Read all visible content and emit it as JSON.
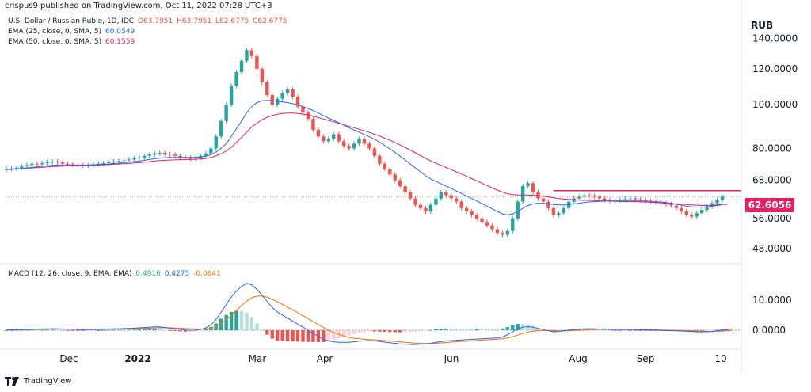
{
  "header": {
    "published": "crispus9 published on TradingView.com, Oct 11, 2022 07:28 UTC+3"
  },
  "legend": {
    "title": "U.S. Dollar / Russian Ruble, 1D, IDC",
    "ohlc": {
      "o": "O63.7951",
      "h": "H63.7951",
      "l": "L62.6775",
      "c": "C62.6775"
    },
    "ema25_label": "EMA (25, close, 0, SMA, 5)",
    "ema25_value": "60.0549",
    "ema50_label": "EMA (50, close, 0, SMA, 5)",
    "ema50_value": "60.1559",
    "macd_label": "MACD (12, 26, close, 9, EMA, EMA)",
    "macd_hist": "0.4916",
    "macd_line": "0.4275",
    "macd_signal": "-0.0641"
  },
  "currency": "RUB",
  "price_badge": "62.6056",
  "footer": {
    "brand": "TradingView"
  },
  "colors": {
    "up": "#26a69a",
    "down": "#ef5350",
    "ema25": "#2962ff",
    "ema50": "#e91e63",
    "signal": "#ff6d00",
    "resistance": "#e91e63"
  },
  "chart_data": {
    "type": "candlestick",
    "price_axis": {
      "ticks": [
        "140.0000",
        "120.0000",
        "100.0000",
        "80.0000",
        "68.0000",
        "56.0000",
        "48.0000"
      ],
      "ylim": [
        45,
        145
      ],
      "scale": "log"
    },
    "macd_axis": {
      "ticks": [
        "10.0000",
        "0.0000"
      ],
      "ylim": [
        -6,
        17
      ]
    },
    "x_ticks": [
      "Dec",
      "2022",
      "Mar",
      "Apr",
      "Jun",
      "Aug",
      "Sep",
      "10"
    ],
    "resistance_level": 64.5,
    "current_price": 62.6056,
    "close": [
      72,
      72.2,
      72.5,
      73,
      73.5,
      74,
      73.8,
      74.2,
      74.6,
      74.8,
      74.5,
      74,
      73.8,
      73.6,
      73.5,
      73.3,
      73.4,
      73.8,
      74,
      74.2,
      74.5,
      74.8,
      75,
      75.3,
      75.6,
      76,
      76.4,
      77,
      77.5,
      78,
      78.2,
      77.8,
      77.5,
      77,
      76.5,
      76.2,
      76,
      76.3,
      77,
      78,
      80,
      85,
      92,
      100,
      110,
      118,
      125,
      132,
      128,
      120,
      112,
      105,
      100,
      103,
      106,
      108,
      104,
      99,
      96,
      93,
      88,
      85,
      83,
      84,
      86,
      83,
      81,
      80,
      82,
      84,
      82,
      80,
      77,
      74,
      72,
      70,
      68,
      66,
      64,
      62,
      60,
      59,
      58,
      60,
      62,
      64,
      63,
      62,
      61,
      59,
      58,
      57,
      56,
      55,
      54,
      53,
      52,
      51.5,
      52.5,
      56,
      61,
      66,
      67,
      64,
      62,
      61,
      59,
      57,
      57.5,
      59,
      61,
      62,
      62.5,
      63,
      62.8,
      62.5,
      62,
      61.5,
      61.2,
      61.4,
      61.6,
      61.8,
      62,
      61.7,
      61.5,
      61.2,
      61,
      60.8,
      60.5,
      60.2,
      59.8,
      59,
      58,
      57,
      56.5,
      57.5,
      58.5,
      59.5,
      60.5,
      61.5,
      62.6
    ],
    "ema25": [
      71.8,
      71.9,
      72,
      72.2,
      72.4,
      72.6,
      72.8,
      73,
      73.2,
      73.4,
      73.5,
      73.5,
      73.5,
      73.5,
      73.5,
      73.5,
      73.5,
      73.6,
      73.7,
      73.8,
      73.9,
      74.1,
      74.2,
      74.4,
      74.6,
      74.8,
      75,
      75.3,
      75.6,
      75.9,
      76.1,
      76.3,
      76.4,
      76.4,
      76.4,
      76.4,
      76.4,
      76.4,
      76.6,
      76.9,
      77.5,
      78.5,
      80,
      82,
      85,
      88.5,
      92,
      96,
      99,
      101,
      102,
      102.2,
      102,
      101.7,
      101.4,
      101,
      100.5,
      99.8,
      99,
      98,
      97,
      95.8,
      94.6,
      93.4,
      92.3,
      91.2,
      90,
      88.9,
      87.9,
      86.9,
      85.9,
      84.9,
      83.8,
      82.6,
      81.2,
      79.8,
      78.4,
      76.9,
      75.4,
      73.9,
      72.4,
      71,
      69.6,
      68.5,
      67.6,
      66.8,
      66,
      65.2,
      64.4,
      63.6,
      62.8,
      62,
      61.2,
      60.4,
      59.6,
      58.8,
      58,
      57.3,
      57,
      57.3,
      58,
      59,
      59.8,
      60.3,
      60.5,
      60.5,
      60.3,
      60.1,
      60,
      60,
      60.1,
      60.3,
      60.5,
      60.7,
      60.9,
      61,
      61.1,
      61.2,
      61.2,
      61.2,
      61.2,
      61.2,
      61.2,
      61.2,
      61.2,
      61.2,
      61.1,
      61,
      60.9,
      60.7,
      60.5,
      60.2,
      59.9,
      59.6,
      59.4,
      59.3,
      59.3,
      59.4,
      59.6,
      59.8,
      60.05
    ],
    "ema50": [
      72,
      72,
      72.1,
      72.2,
      72.3,
      72.4,
      72.5,
      72.6,
      72.8,
      72.9,
      73,
      73.1,
      73.2,
      73.2,
      73.3,
      73.3,
      73.3,
      73.4,
      73.5,
      73.6,
      73.7,
      73.8,
      73.9,
      74,
      74.1,
      74.3,
      74.4,
      74.6,
      74.8,
      75,
      75.2,
      75.3,
      75.4,
      75.5,
      75.5,
      75.6,
      75.6,
      75.7,
      75.8,
      76,
      76.4,
      77,
      77.8,
      79,
      80.5,
      82.5,
      84.5,
      87,
      89.2,
      91,
      92.6,
      93.8,
      94.6,
      95.2,
      95.6,
      95.8,
      95.8,
      95.6,
      95.3,
      94.9,
      94.3,
      93.6,
      92.9,
      92.2,
      91.6,
      90.9,
      90.2,
      89.5,
      88.9,
      88.2,
      87.5,
      86.8,
      86,
      85.2,
      84.3,
      83.4,
      82.4,
      81.4,
      80.4,
      79.3,
      78.2,
      77.1,
      76,
      75.1,
      74.2,
      73.4,
      72.6,
      71.8,
      71,
      70.2,
      69.4,
      68.6,
      67.8,
      67,
      66.2,
      65.4,
      64.7,
      64,
      63.5,
      63.2,
      63.1,
      63.1,
      63.1,
      63,
      62.9,
      62.7,
      62.5,
      62.2,
      62,
      61.8,
      61.7,
      61.6,
      61.5,
      61.4,
      61.4,
      61.3,
      61.3,
      61.2,
      61.2,
      61.1,
      61.1,
      61,
      61,
      61,
      60.9,
      60.9,
      60.8,
      60.7,
      60.6,
      60.5,
      60.4,
      60.3,
      60.2,
      60.1,
      60,
      59.9,
      59.8,
      59.8,
      59.9,
      60,
      60.1,
      60.16
    ],
    "macd": [
      0.1,
      0.15,
      0.2,
      0.25,
      0.3,
      0.35,
      0.35,
      0.4,
      0.45,
      0.5,
      0.45,
      0.4,
      0.35,
      0.3,
      0.25,
      0.2,
      0.2,
      0.25,
      0.3,
      0.35,
      0.4,
      0.45,
      0.5,
      0.55,
      0.6,
      0.7,
      0.8,
      0.9,
      1,
      1.1,
      1.1,
      0.9,
      0.7,
      0.5,
      0.3,
      0.1,
      0,
      0,
      0.3,
      0.8,
      1.8,
      3.5,
      6,
      8.5,
      11,
      13,
      14.5,
      15.5,
      15,
      13.5,
      11.5,
      9.5,
      7.5,
      6,
      5,
      4,
      3,
      2,
      1,
      0,
      -1,
      -2,
      -3,
      -3.5,
      -3.8,
      -4,
      -4,
      -4,
      -3.8,
      -3.6,
      -3.5,
      -3.4,
      -3.5,
      -3.7,
      -3.9,
      -4.1,
      -4.3,
      -4.5,
      -4.6,
      -4.7,
      -4.7,
      -4.6,
      -4.5,
      -4.3,
      -4,
      -3.7,
      -3.5,
      -3.4,
      -3.3,
      -3.2,
      -3.1,
      -3,
      -2.9,
      -2.8,
      -2.7,
      -2.6,
      -2.5,
      -2.2,
      -1.5,
      -0.5,
      0.5,
      1,
      1.2,
      1,
      0.6,
      0.2,
      -0.2,
      -0.5,
      -0.4,
      -0.2,
      0,
      0.2,
      0.35,
      0.45,
      0.5,
      0.45,
      0.4,
      0.35,
      0.3,
      0.25,
      0.25,
      0.25,
      0.25,
      0.2,
      0.15,
      0.1,
      0.05,
      0,
      -0.05,
      -0.1,
      -0.15,
      -0.2,
      -0.25,
      -0.3,
      -0.4,
      -0.5,
      -0.55,
      -0.5,
      -0.4,
      -0.2,
      0,
      0.2,
      0.43
    ],
    "signal": [
      0.1,
      0.12,
      0.14,
      0.17,
      0.2,
      0.23,
      0.26,
      0.29,
      0.32,
      0.35,
      0.37,
      0.38,
      0.38,
      0.37,
      0.35,
      0.33,
      0.31,
      0.3,
      0.3,
      0.31,
      0.32,
      0.34,
      0.37,
      0.4,
      0.43,
      0.48,
      0.54,
      0.6,
      0.68,
      0.76,
      0.83,
      0.85,
      0.82,
      0.76,
      0.67,
      0.56,
      0.45,
      0.36,
      0.35,
      0.44,
      0.71,
      1.27,
      2.2,
      3.46,
      4.97,
      6.58,
      8.16,
      9.63,
      10.7,
      11.27,
      11.3,
      10.94,
      10.25,
      9.4,
      8.52,
      7.62,
      6.69,
      5.76,
      4.81,
      3.85,
      2.88,
      1.9,
      0.92,
      0.04,
      -0.73,
      -1.38,
      -1.9,
      -2.33,
      -2.62,
      -2.82,
      -2.96,
      -3.05,
      -3.14,
      -3.25,
      -3.38,
      -3.52,
      -3.67,
      -3.83,
      -3.99,
      -4.13,
      -4.24,
      -4.32,
      -4.36,
      -4.35,
      -4.28,
      -4.16,
      -4.03,
      -3.9,
      -3.78,
      -3.67,
      -3.56,
      -3.45,
      -3.35,
      -3.24,
      -3.14,
      -3.03,
      -2.92,
      -2.78,
      -2.53,
      -2.12,
      -1.6,
      -1.08,
      -0.62,
      -0.3,
      -0.12,
      -0.06,
      -0.09,
      -0.17,
      -0.22,
      -0.22,
      -0.18,
      -0.1,
      -0.01,
      0.08,
      0.16,
      0.22,
      0.26,
      0.28,
      0.28,
      0.27,
      0.27,
      0.26,
      0.26,
      0.25,
      0.23,
      0.2,
      0.17,
      0.13,
      0.09,
      0.05,
      0.01,
      -0.04,
      -0.09,
      -0.15,
      -0.22,
      -0.29,
      -0.34,
      -0.37,
      -0.38,
      -0.34,
      -0.27,
      -0.17,
      -0.06
    ]
  }
}
